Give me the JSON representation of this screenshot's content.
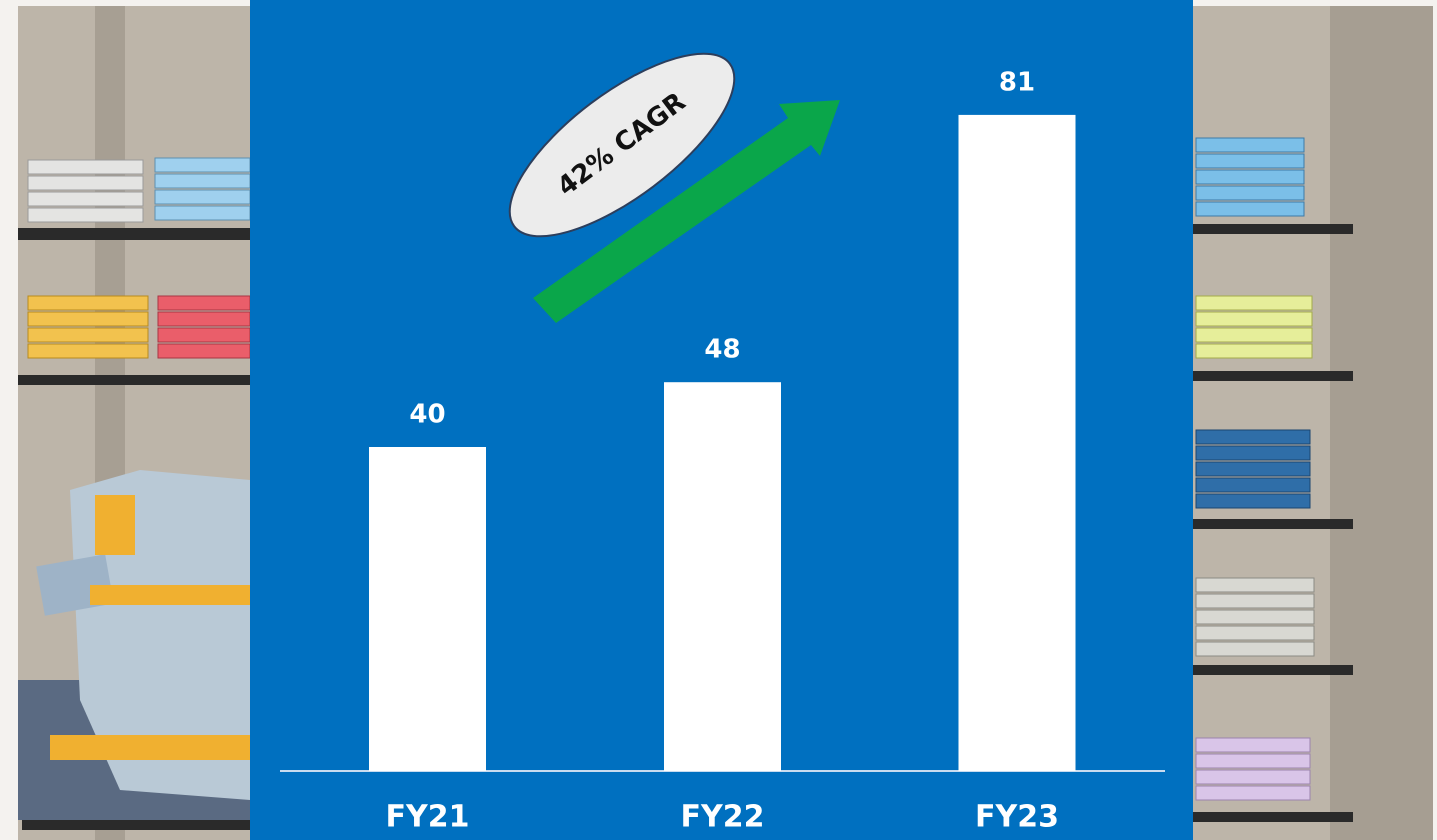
{
  "chart_data": {
    "type": "bar",
    "categories": [
      "FY21",
      "FY22",
      "FY23"
    ],
    "values": [
      40,
      48,
      81
    ],
    "color": "#ffffff",
    "annotation": "42% CAGR"
  }
}
